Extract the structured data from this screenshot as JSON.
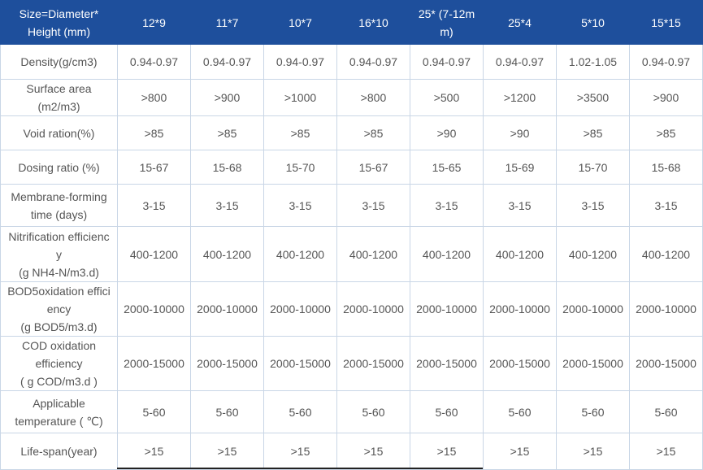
{
  "table": {
    "header": {
      "label": "Size=Diameter*\nHeight (mm)",
      "columns": [
        "12*9",
        "11*7",
        "10*7",
        "16*10",
        "25* (7-12m\nm)",
        "25*4",
        "5*10",
        "15*15"
      ]
    },
    "rows": [
      {
        "label": "Density(g/cm3)",
        "values": [
          "0.94-0.97",
          "0.94-0.97",
          "0.94-0.97",
          "0.94-0.97",
          "0.94-0.97",
          "0.94-0.97",
          "1.02-1.05",
          "0.94-0.97"
        ]
      },
      {
        "label": "Surface area\n(m2/m3)",
        "values": [
          ">800",
          ">900",
          ">1000",
          ">800",
          ">500",
          ">1200",
          ">3500",
          ">900"
        ]
      },
      {
        "label": "Void ration(%)",
        "values": [
          ">85",
          ">85",
          ">85",
          ">85",
          ">90",
          ">90",
          ">85",
          ">85"
        ]
      },
      {
        "label": "Dosing ratio (%)",
        "values": [
          "15-67",
          "15-68",
          "15-70",
          "15-67",
          "15-65",
          "15-69",
          "15-70",
          "15-68"
        ]
      },
      {
        "label": "Membrane-forming\ntime (days)",
        "values": [
          "3-15",
          "3-15",
          "3-15",
          "3-15",
          "3-15",
          "3-15",
          "3-15",
          "3-15"
        ]
      },
      {
        "label": "Nitrification efficienc\ny\n(g NH4-N/m3.d)",
        "values": [
          "400-1200",
          "400-1200",
          "400-1200",
          "400-1200",
          "400-1200",
          "400-1200",
          "400-1200",
          "400-1200"
        ]
      },
      {
        "label": "BOD5oxidation effici\nency\n(g BOD5/m3.d)",
        "values": [
          "2000-10000",
          "2000-10000",
          "2000-10000",
          "2000-10000",
          "2000-10000",
          "2000-10000",
          "2000-10000",
          "2000-10000"
        ]
      },
      {
        "label": "COD oxidation\nefficiency\n( g COD/m3.d )",
        "values": [
          "2000-15000",
          "2000-15000",
          "2000-15000",
          "2000-15000",
          "2000-15000",
          "2000-15000",
          "2000-15000",
          "2000-15000"
        ]
      },
      {
        "label": "Applicable\ntemperature ( ℃)",
        "values": [
          "5-60",
          "5-60",
          "5-60",
          "5-60",
          "5-60",
          "5-60",
          "5-60",
          "5-60"
        ]
      },
      {
        "label": "Life-span(year)",
        "values": [
          ">15",
          ">15",
          ">15",
          ">15",
          ">15",
          ">15",
          ">15",
          ">15"
        ]
      }
    ]
  },
  "colors": {
    "header_bg": "#1e4f9c",
    "header_text": "#ffffff",
    "body_text": "#555555",
    "border": "#c9d6e6"
  }
}
